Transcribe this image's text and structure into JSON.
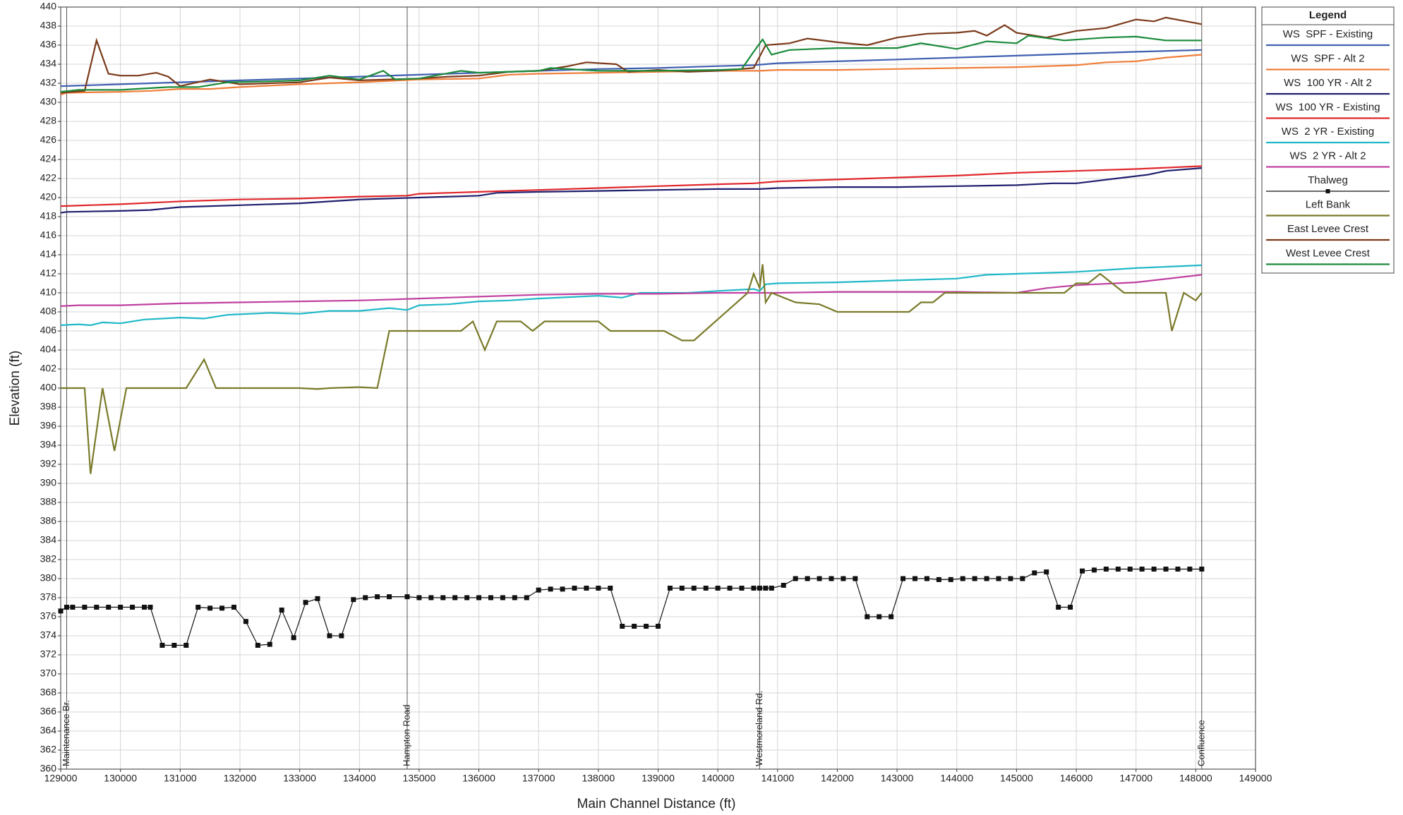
{
  "chart_data": {
    "type": "line",
    "xlabel": "Main Channel Distance (ft)",
    "ylabel": "Elevation (ft)",
    "legend_title": "Legend",
    "legend": "right",
    "grid": true,
    "xlim": [
      129000,
      149000
    ],
    "xticks": [
      129000,
      130000,
      131000,
      132000,
      133000,
      134000,
      135000,
      136000,
      137000,
      138000,
      139000,
      140000,
      141000,
      142000,
      143000,
      144000,
      145000,
      146000,
      147000,
      148000,
      149000
    ],
    "ylim": [
      360,
      440
    ],
    "yticks": [
      360,
      362,
      364,
      366,
      368,
      370,
      372,
      374,
      376,
      378,
      380,
      382,
      384,
      386,
      388,
      390,
      392,
      394,
      396,
      398,
      400,
      402,
      404,
      406,
      408,
      410,
      412,
      414,
      416,
      418,
      420,
      422,
      424,
      426,
      428,
      430,
      432,
      434,
      436,
      438,
      440
    ],
    "annotations": [
      {
        "text": "Maintenance Br.",
        "x": 129100
      },
      {
        "text": "Hampton Road",
        "x": 134800
      },
      {
        "text": "Westmoreland Rd.",
        "x": 140700
      },
      {
        "text": "Confluence",
        "x": 148100
      }
    ],
    "series": [
      {
        "name": "WS  SPF - Existing",
        "color": "#3f5fb0",
        "x": [
          129000,
          130000,
          131000,
          132000,
          133000,
          134000,
          135000,
          136000,
          137000,
          138000,
          139000,
          140000,
          140600,
          141000,
          142000,
          143000,
          144000,
          145000,
          146000,
          147000,
          148100
        ],
        "values": [
          431.7,
          431.9,
          432.1,
          432.3,
          432.5,
          432.7,
          432.9,
          433.1,
          433.3,
          433.5,
          433.6,
          433.8,
          433.9,
          434.1,
          434.3,
          434.5,
          434.7,
          434.9,
          435.1,
          435.3,
          435.5
        ]
      },
      {
        "name": "WS  SPF - Alt 2",
        "color": "#f07f3c",
        "x": [
          129000,
          129100,
          130000,
          130500,
          131000,
          131500,
          132000,
          133000,
          134000,
          135000,
          136000,
          136500,
          137000,
          138000,
          139000,
          140000,
          140700,
          141000,
          142000,
          143000,
          144000,
          145000,
          146000,
          146500,
          147000,
          147500,
          148100
        ],
        "values": [
          430.8,
          431.0,
          431.1,
          431.2,
          431.4,
          431.4,
          431.6,
          431.9,
          432.1,
          432.4,
          432.5,
          432.9,
          433.0,
          433.1,
          433.2,
          433.3,
          433.3,
          433.4,
          433.4,
          433.5,
          433.6,
          433.7,
          433.9,
          434.2,
          434.3,
          434.7,
          435.0
        ]
      },
      {
        "name": "WS  100 YR - Alt 2",
        "color": "#1f1f6e",
        "x": [
          129000,
          129100,
          130000,
          130500,
          131000,
          131500,
          132000,
          133000,
          134000,
          135000,
          136000,
          136300,
          137000,
          138000,
          139000,
          140000,
          140700,
          141000,
          142000,
          143000,
          144000,
          145000,
          145600,
          146000,
          146800,
          147200,
          147500,
          148100
        ],
        "values": [
          418.4,
          418.5,
          418.6,
          418.7,
          419.0,
          419.1,
          419.2,
          419.4,
          419.8,
          420.0,
          420.2,
          420.5,
          420.6,
          420.7,
          420.8,
          420.9,
          420.9,
          421.0,
          421.1,
          421.1,
          421.2,
          421.3,
          421.5,
          421.5,
          422.1,
          422.4,
          422.8,
          423.1
        ]
      },
      {
        "name": "WS  100 YR - Existing",
        "color": "#e0262b",
        "x": [
          129000,
          130000,
          131000,
          132000,
          133000,
          134000,
          134800,
          135000,
          136000,
          137000,
          138000,
          139000,
          140000,
          140600,
          141000,
          142000,
          143000,
          144000,
          145000,
          146000,
          147000,
          148100
        ],
        "values": [
          419.1,
          419.3,
          419.6,
          419.8,
          419.9,
          420.1,
          420.2,
          420.4,
          420.6,
          420.8,
          421.0,
          421.2,
          421.4,
          421.5,
          421.7,
          421.9,
          422.1,
          422.3,
          422.6,
          422.8,
          423.0,
          423.3
        ]
      },
      {
        "name": "WS  2 YR - Existing",
        "color": "#20b8c8",
        "x": [
          129000,
          129300,
          129500,
          129700,
          130000,
          130400,
          131000,
          131400,
          131800,
          132500,
          133000,
          133500,
          134000,
          134500,
          134800,
          135000,
          135500,
          136000,
          136500,
          137000,
          138000,
          138400,
          138700,
          139500,
          140000,
          140600,
          140700,
          140800,
          141000,
          142000,
          143000,
          144000,
          144500,
          145000,
          146000,
          147000,
          148100
        ],
        "values": [
          406.6,
          406.7,
          406.6,
          406.9,
          406.8,
          407.2,
          407.4,
          407.3,
          407.7,
          407.9,
          407.8,
          408.1,
          408.1,
          408.4,
          408.2,
          408.7,
          408.8,
          409.1,
          409.2,
          409.4,
          409.7,
          409.5,
          410.0,
          410.0,
          410.2,
          410.4,
          410.2,
          410.9,
          411.0,
          411.1,
          411.3,
          411.5,
          411.9,
          412.0,
          412.2,
          412.6,
          412.9
        ]
      },
      {
        "name": "WS  2 YR - Alt 2",
        "color": "#c040a0",
        "x": [
          129000,
          129300,
          130000,
          131000,
          132000,
          133000,
          134000,
          135000,
          136000,
          137000,
          138000,
          139000,
          140000,
          141000,
          142000,
          143000,
          144000,
          145000,
          145500,
          146000,
          147000,
          148100
        ],
        "values": [
          408.6,
          408.7,
          408.7,
          408.9,
          409.0,
          409.1,
          409.2,
          409.4,
          409.6,
          409.8,
          409.9,
          409.9,
          410.0,
          410.0,
          410.1,
          410.1,
          410.1,
          410.0,
          410.5,
          410.8,
          411.1,
          411.9
        ]
      },
      {
        "name": "Thalweg",
        "color": "#111111",
        "marker": "square",
        "x": [
          129000,
          129100,
          129200,
          129400,
          129600,
          129800,
          130000,
          130200,
          130400,
          130500,
          130700,
          130900,
          131100,
          131300,
          131500,
          131700,
          131900,
          132100,
          132300,
          132500,
          132700,
          132900,
          133100,
          133300,
          133500,
          133700,
          133900,
          134100,
          134300,
          134500,
          134800,
          135000,
          135200,
          135400,
          135600,
          135800,
          136000,
          136200,
          136400,
          136600,
          136800,
          137000,
          137200,
          137400,
          137600,
          137800,
          138000,
          138200,
          138400,
          138600,
          138800,
          139000,
          139200,
          139400,
          139600,
          139800,
          140000,
          140200,
          140400,
          140600,
          140700,
          140800,
          140900,
          141100,
          141300,
          141500,
          141700,
          141900,
          142100,
          142300,
          142500,
          142700,
          142900,
          143100,
          143300,
          143500,
          143700,
          143900,
          144100,
          144300,
          144500,
          144700,
          144900,
          145100,
          145300,
          145500,
          145700,
          145900,
          146100,
          146300,
          146500,
          146700,
          146900,
          147100,
          147300,
          147500,
          147700,
          147900,
          148100
        ],
        "values": [
          376.6,
          377,
          377,
          377,
          377,
          377,
          377,
          377,
          377,
          377,
          373,
          373,
          373,
          377,
          376.9,
          376.9,
          377,
          375.5,
          373,
          373.1,
          376.7,
          373.8,
          377.5,
          377.9,
          374,
          374,
          377.8,
          378,
          378.1,
          378.1,
          378.1,
          378,
          378,
          378,
          378,
          378,
          378,
          378,
          378,
          378,
          378,
          378.8,
          378.9,
          378.9,
          379,
          379,
          379,
          379,
          375,
          375,
          375,
          375,
          379,
          379,
          379,
          379,
          379,
          379,
          379,
          379,
          379,
          379,
          379,
          379.3,
          380,
          380,
          380,
          380,
          380,
          380,
          376,
          376,
          376,
          380,
          380,
          380,
          379.9,
          379.9,
          380,
          380,
          380,
          380,
          380,
          380,
          380.6,
          380.7,
          377,
          377,
          380.8,
          380.9,
          381,
          381,
          381,
          381,
          381,
          381,
          381,
          381,
          381
        ]
      },
      {
        "name": "Left Bank",
        "color": "#7a7a2a",
        "x": [
          129000,
          129400,
          129500,
          129700,
          129900,
          130100,
          131100,
          131400,
          131600,
          133000,
          133300,
          133500,
          134000,
          134300,
          134500,
          135700,
          135900,
          136100,
          136300,
          136700,
          136900,
          137100,
          138000,
          138200,
          139100,
          139400,
          139600,
          140500,
          140600,
          140700,
          140750,
          140800,
          140900,
          141300,
          141700,
          142000,
          143200,
          143400,
          143600,
          143800,
          145800,
          146000,
          146200,
          146400,
          146800,
          147500,
          147600,
          147800,
          148000,
          148100
        ],
        "values": [
          400,
          400,
          391,
          400,
          393.4,
          400,
          400,
          403,
          400,
          400,
          399.9,
          400,
          400.1,
          400,
          406,
          406,
          407,
          404,
          407,
          407,
          406,
          407,
          407,
          406,
          406,
          405,
          405,
          410,
          412,
          410.5,
          413,
          409,
          410,
          409,
          408.8,
          408,
          408,
          409,
          409,
          410,
          410,
          411,
          411,
          412,
          410,
          410,
          406,
          410,
          409.2,
          410
        ]
      },
      {
        "name": "East Levee Crest",
        "color": "#7b3a1a",
        "x": [
          129000,
          129400,
          129600,
          129800,
          130000,
          130300,
          130600,
          130800,
          131000,
          131500,
          132000,
          133000,
          133500,
          134000,
          134500,
          135000,
          135500,
          136000,
          136500,
          137000,
          137500,
          137800,
          138300,
          138500,
          139000,
          139500,
          140000,
          140600,
          140800,
          141200,
          141500,
          142000,
          142500,
          143000,
          143500,
          144000,
          144300,
          144500,
          144800,
          145000,
          145500,
          146000,
          146500,
          147000,
          147300,
          147500,
          148100
        ],
        "values": [
          431.0,
          431.2,
          436.5,
          433.0,
          432.8,
          432.8,
          433.1,
          432.7,
          431.7,
          432.4,
          431.9,
          432.1,
          432.6,
          432.3,
          432.4,
          432.5,
          432.7,
          432.8,
          433.2,
          433.3,
          433.8,
          434.2,
          434.0,
          433.2,
          433.4,
          433.2,
          433.3,
          433.6,
          436.0,
          436.2,
          436.7,
          436.3,
          436.0,
          436.8,
          437.2,
          437.3,
          437.5,
          437.0,
          438.1,
          437.3,
          436.8,
          437.5,
          437.8,
          438.7,
          438.5,
          438.9,
          438.2
        ]
      },
      {
        "name": "West Levee Crest",
        "color": "#1a8a3a",
        "x": [
          129000,
          129300,
          130000,
          130800,
          131300,
          131800,
          132500,
          133000,
          133500,
          134000,
          134400,
          134600,
          135000,
          135700,
          136000,
          137000,
          137200,
          138000,
          139000,
          140000,
          140400,
          140600,
          140750,
          140900,
          141200,
          142000,
          143000,
          143400,
          144000,
          144500,
          145000,
          145200,
          145800,
          146500,
          147000,
          147500,
          148100
        ],
        "values": [
          431.1,
          431.3,
          431.3,
          431.6,
          431.6,
          432.1,
          432.2,
          432.3,
          432.8,
          432.4,
          433.3,
          432.4,
          432.5,
          433.3,
          433.1,
          433.3,
          433.6,
          433.3,
          433.3,
          433.4,
          433.5,
          435.3,
          436.6,
          435.0,
          435.5,
          435.7,
          435.7,
          436.2,
          435.6,
          436.4,
          436.2,
          437.0,
          436.5,
          436.8,
          436.9,
          436.5,
          436.5
        ]
      }
    ]
  }
}
